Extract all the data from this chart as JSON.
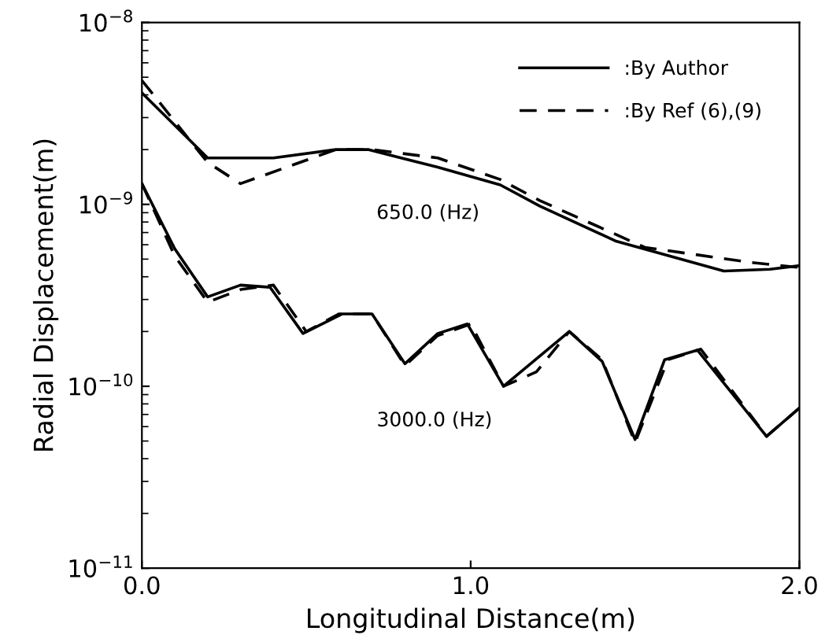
{
  "chart_data": {
    "type": "line",
    "xlabel": "Longitudinal Distance(m)",
    "ylabel": "Radial Displacement(m)",
    "log": "y",
    "xlim": [
      0,
      2.0
    ],
    "ylim": [
      1e-11,
      1e-08
    ],
    "xticks": [
      {
        "value": 0,
        "label": "0.0"
      },
      {
        "value": 1,
        "label": "1.0"
      },
      {
        "value": 2,
        "label": "2.0"
      }
    ],
    "yticks": [
      {
        "value": 1e-11,
        "label": "10$^{−11}$"
      },
      {
        "value": 1e-10,
        "label": "10$^{−10}$"
      },
      {
        "value": 1e-09,
        "label": "10$^{−9}$"
      },
      {
        "value": 1e-08,
        "label": "10$^{−8}$"
      }
    ],
    "grid": false,
    "legend": "top right",
    "marker": "none",
    "annotations": [
      "650.0 (Hz)",
      "3000.0 (Hz)"
    ],
    "series": [
      {
        "name": ":By Author",
        "color": "#000000",
        "line_style": "solid",
        "x": [
          0,
          0.2,
          0.4,
          0.59,
          0.69,
          0.9,
          1.09,
          1.21,
          1.44,
          1.77,
          1.91,
          2.0
        ],
        "values": [
          4.1e-09,
          1.8e-09,
          1.8e-09,
          2e-09,
          2e-09,
          1.6e-09,
          1.28e-09,
          9.8e-10,
          6.3e-10,
          4.3e-10,
          4.4e-10,
          4.6e-10
        ]
      },
      {
        "name": ":By Ref (6),(9)",
        "color": "#000000",
        "line_style": "dashed",
        "x": [
          0,
          0.2,
          0.3,
          0.59,
          0.7,
          0.9,
          1.09,
          1.21,
          1.53,
          1.85,
          2.0
        ],
        "values": [
          4.8e-09,
          1.7e-09,
          1.3e-09,
          2e-09,
          2e-09,
          1.8e-09,
          1.37e-09,
          1.05e-09,
          5.8e-10,
          4.8e-10,
          4.5e-10
        ]
      },
      {
        "color": "#000000",
        "line_style": "solid",
        "x": [
          0,
          0.1,
          0.2,
          0.3,
          0.39,
          0.49,
          0.61,
          0.7,
          0.8,
          0.9,
          0.99,
          1.1,
          1.3,
          1.4,
          1.5,
          1.59,
          1.69,
          1.9,
          2.0
        ],
        "values": [
          1.3e-09,
          5.7e-10,
          3.1e-10,
          3.6e-10,
          3.5e-10,
          1.95e-10,
          2.5e-10,
          2.5e-10,
          1.33e-10,
          1.95e-10,
          2.2e-10,
          1e-10,
          2e-10,
          1.37e-10,
          5.1e-11,
          1.4e-10,
          1.58e-10,
          5.3e-11,
          7.6e-11
        ]
      },
      {
        "color": "#000000",
        "line_style": "dashed",
        "x": [
          0,
          0.1,
          0.2,
          0.3,
          0.4,
          0.5,
          0.6,
          0.7,
          0.8,
          0.9,
          1.0,
          1.1,
          1.2,
          1.3,
          1.4,
          1.5,
          1.6,
          1.7,
          1.9,
          2.0
        ],
        "values": [
          1.3e-09,
          5.2e-10,
          2.9e-10,
          3.4e-10,
          3.6e-10,
          2e-10,
          2.5e-10,
          2.5e-10,
          1.3e-10,
          1.9e-10,
          2.2e-10,
          1e-10,
          1.2e-10,
          2e-10,
          1.4e-10,
          4.9e-11,
          1.4e-10,
          1.6e-10,
          5.3e-11,
          7.6e-11
        ]
      }
    ]
  }
}
